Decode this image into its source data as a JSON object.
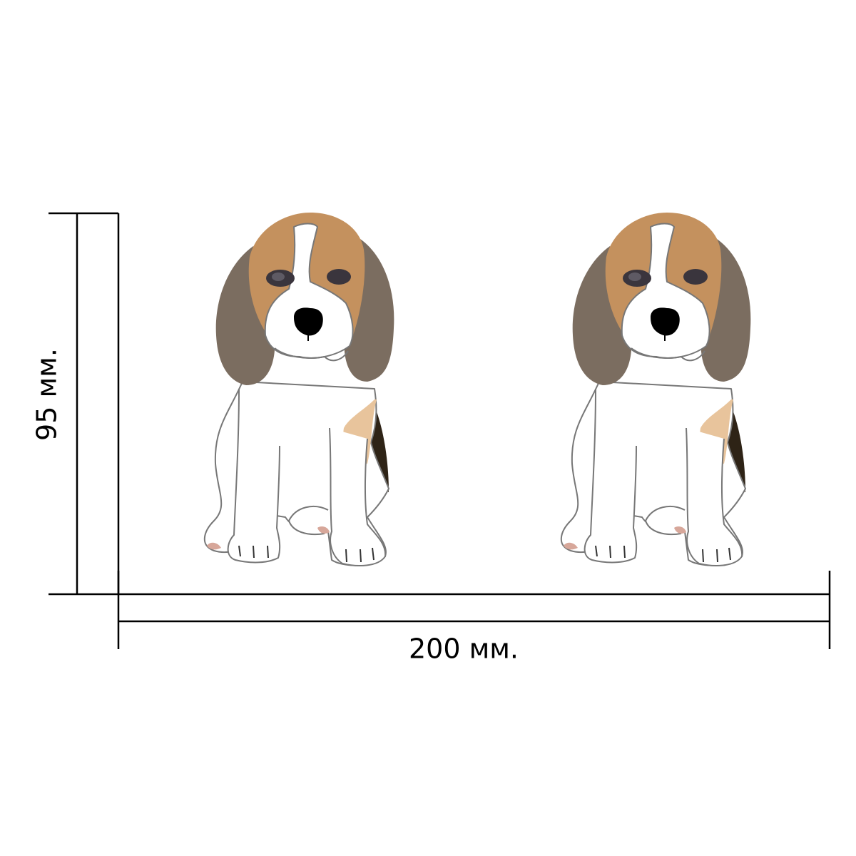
{
  "dimensions": {
    "height_label": "95 мм.",
    "width_label": "200 мм."
  }
}
